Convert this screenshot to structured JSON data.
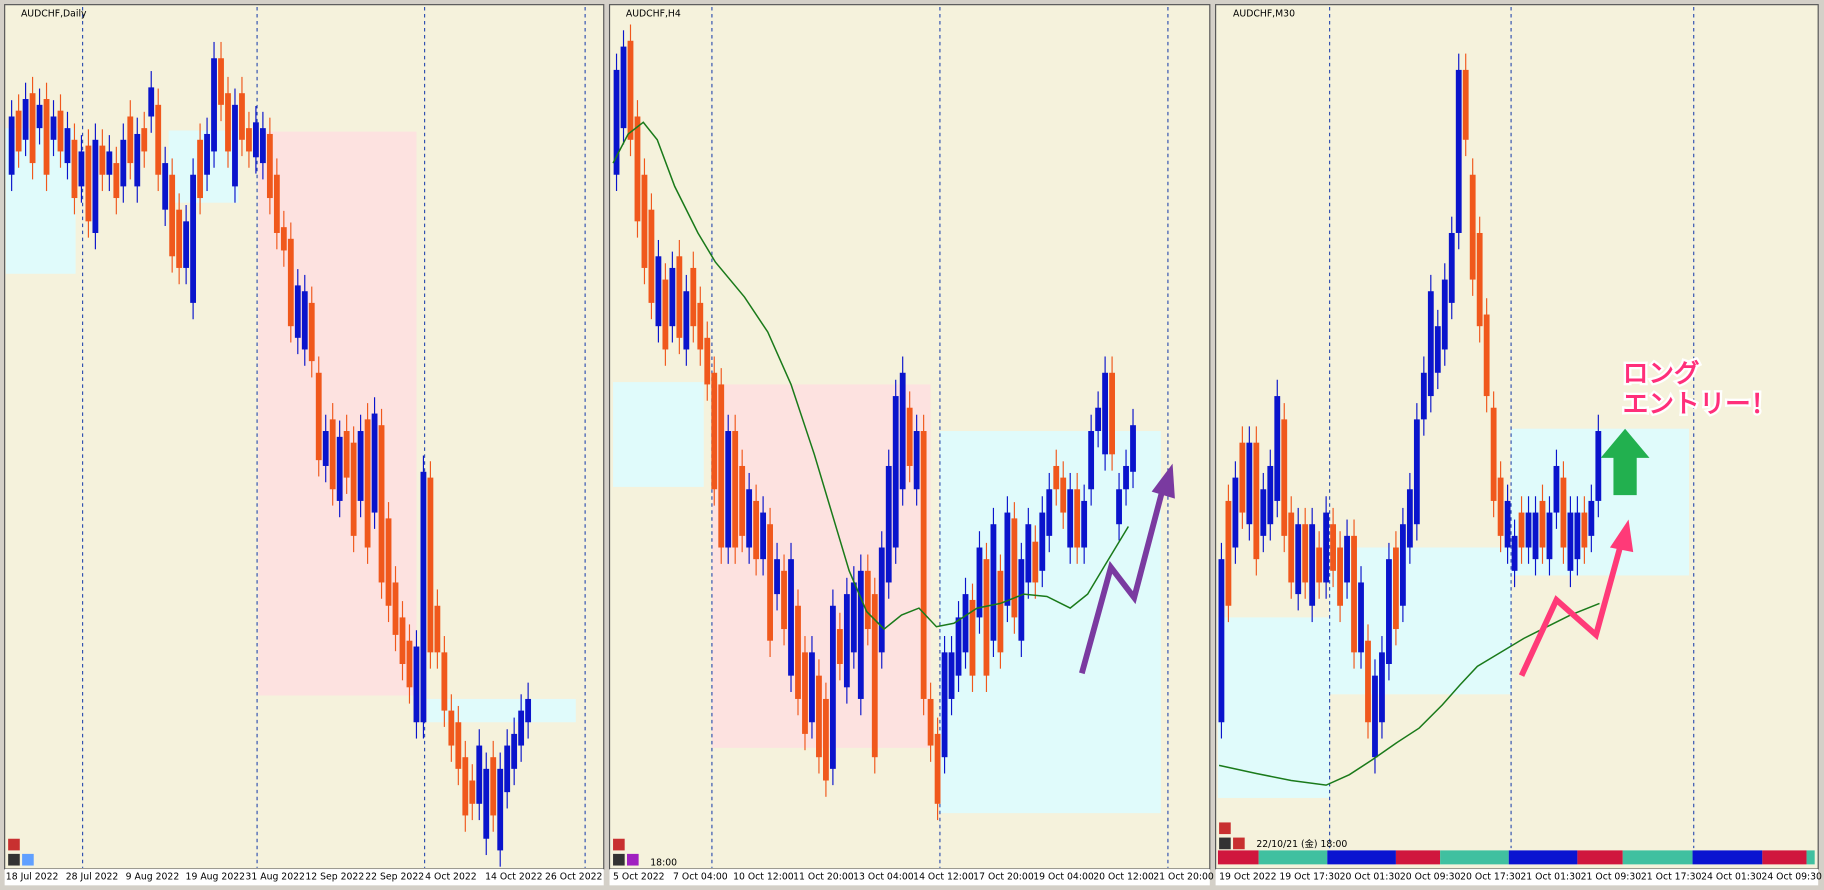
{
  "panels": [
    {
      "title": "AUDCHF,Daily",
      "x_labels": [
        "18 Jul 2022",
        "28 Jul 2022",
        "9 Aug 2022",
        "19 Aug 2022",
        "31 Aug 2022",
        "12 Sep 2022",
        "22 Sep 2022",
        "4 Oct 2022",
        "14 Oct 2022",
        "26 Oct 2022"
      ]
    },
    {
      "title": "AUDCHF,H4",
      "time_label": "18:00",
      "x_labels": [
        "5 Oct 2022",
        "7 Oct 04:00",
        "10 Oct 12:00",
        "11 Oct 20:00",
        "13 Oct 04:00",
        "14 Oct 12:00",
        "17 Oct 20:00",
        "19 Oct 04:00",
        "20 Oct 12:00",
        "21 Oct 20:00"
      ]
    },
    {
      "title": "AUDCHF,M30",
      "time_label": "22/10/21 (金) 18:00",
      "x_labels": [
        "19 Oct 2022",
        "19 Oct 17:30",
        "20 Oct 01:30",
        "20 Oct 09:30",
        "20 Oct 17:30",
        "21 Oct 01:30",
        "21 Oct 09:30",
        "21 Oct 17:30",
        "24 Oct 01:30",
        "24 Oct 09:30"
      ]
    }
  ],
  "annotation": [
    "ロング",
    "エントリー！"
  ]
}
